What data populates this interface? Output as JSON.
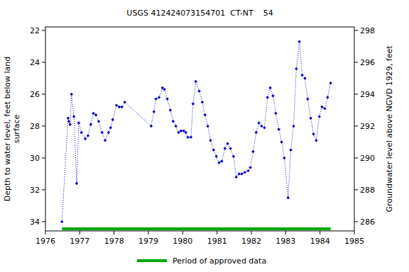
{
  "chart_data": {
    "type": "line",
    "title": "USGS 412424073154701  CT-NT    54",
    "y_label_lines": [
      "Depth to water level, feet below land",
      "surface"
    ],
    "y2_label": "Groundwater level above NGVD 1929, feet",
    "xlim": [
      1976,
      1985
    ],
    "xticks": [
      1976,
      1977,
      1978,
      1979,
      1980,
      1981,
      1982,
      1983,
      1984,
      1985
    ],
    "ylim": [
      34.58,
      21.78
    ],
    "yticks": [
      22,
      24,
      26,
      28,
      30,
      32,
      34
    ],
    "y2lim": [
      285.42,
      298.22
    ],
    "y2ticks": [
      286,
      288,
      290,
      292,
      294,
      296,
      298
    ],
    "grid": false,
    "legend": "bottom",
    "series": [
      {
        "color": "#0000cc",
        "marker": "diamond",
        "line_style": "dotted",
        "x": [
          1976.48,
          1976.66,
          1976.68,
          1976.72,
          1976.76,
          1976.83,
          1976.91,
          1976.97,
          1977.05,
          1977.16,
          1977.24,
          1977.32,
          1977.4,
          1977.47,
          1977.55,
          1977.65,
          1977.74,
          1977.84,
          1977.9,
          1977.96,
          1978.07,
          1978.15,
          1978.23,
          1978.31,
          1979.08,
          1979.16,
          1979.22,
          1979.31,
          1979.41,
          1979.47,
          1979.55,
          1979.64,
          1979.72,
          1979.8,
          1979.88,
          1979.95,
          1980.03,
          1980.09,
          1980.15,
          1980.24,
          1980.3,
          1980.38,
          1980.48,
          1980.57,
          1980.65,
          1980.73,
          1980.81,
          1980.9,
          1980.98,
          1981.06,
          1981.14,
          1981.23,
          1981.31,
          1981.39,
          1981.48,
          1981.56,
          1981.64,
          1981.72,
          1981.81,
          1981.91,
          1981.97,
          1982.05,
          1982.14,
          1982.22,
          1982.3,
          1982.38,
          1982.47,
          1982.55,
          1982.63,
          1982.71,
          1982.8,
          1982.88,
          1982.96,
          1983.07,
          1983.15,
          1983.23,
          1983.31,
          1983.4,
          1983.48,
          1983.56,
          1983.64,
          1983.73,
          1983.81,
          1983.89,
          1983.98,
          1984.06,
          1984.14,
          1984.22,
          1984.31
        ],
        "values": [
          34.0,
          27.5,
          27.7,
          27.9,
          26.0,
          27.4,
          31.6,
          27.8,
          28.4,
          28.8,
          28.6,
          27.9,
          27.2,
          27.3,
          27.7,
          28.4,
          28.9,
          28.4,
          28.1,
          27.6,
          26.7,
          26.8,
          26.8,
          26.5,
          28.0,
          27.1,
          26.3,
          26.2,
          25.6,
          25.7,
          26.3,
          27.0,
          27.7,
          28.0,
          28.4,
          28.3,
          28.3,
          28.4,
          28.7,
          28.7,
          26.6,
          25.2,
          25.8,
          26.5,
          27.3,
          28.0,
          28.9,
          29.5,
          29.9,
          30.3,
          30.2,
          29.4,
          29.1,
          29.4,
          29.9,
          31.2,
          31.0,
          31.0,
          30.9,
          30.8,
          30.6,
          29.6,
          28.4,
          27.8,
          28.0,
          28.1,
          26.2,
          25.6,
          26.1,
          27.2,
          28.2,
          29.0,
          30.0,
          32.5,
          29.5,
          28.0,
          24.4,
          22.7,
          24.8,
          25.0,
          26.3,
          27.5,
          28.5,
          28.9,
          27.4,
          26.8,
          26.9,
          26.2,
          25.3
        ]
      },
      {
        "name": "Period of approved data",
        "color": "#00aa00",
        "type": "line",
        "line_style": "solid",
        "x": [
          1976.48,
          1984.31
        ],
        "values": [
          34.45,
          34.45
        ]
      }
    ]
  }
}
